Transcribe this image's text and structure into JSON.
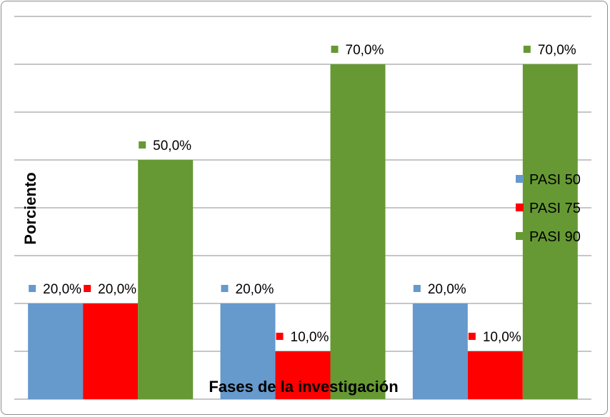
{
  "chart_data": {
    "type": "bar",
    "title": "",
    "xlabel": "Fases de la investigación",
    "ylabel": "Porciento",
    "ylim": [
      0,
      80
    ],
    "grid": true,
    "legend_position": "right",
    "categories": [
      "",
      "",
      ""
    ],
    "series": [
      {
        "name": "PASI 50",
        "color": "#6699cc",
        "values": [
          20,
          20,
          20
        ],
        "labels": [
          "20,0%",
          "20,0%",
          "20,0%"
        ]
      },
      {
        "name": "PASI 75",
        "color": "#ff0000",
        "values": [
          20,
          10,
          10
        ],
        "labels": [
          "20,0%",
          "10,0%",
          "10,0%"
        ]
      },
      {
        "name": "PASI 90",
        "color": "#669933",
        "values": [
          50,
          70,
          70
        ],
        "labels": [
          "50,0%",
          "70,0%",
          "70,0%"
        ]
      }
    ]
  }
}
